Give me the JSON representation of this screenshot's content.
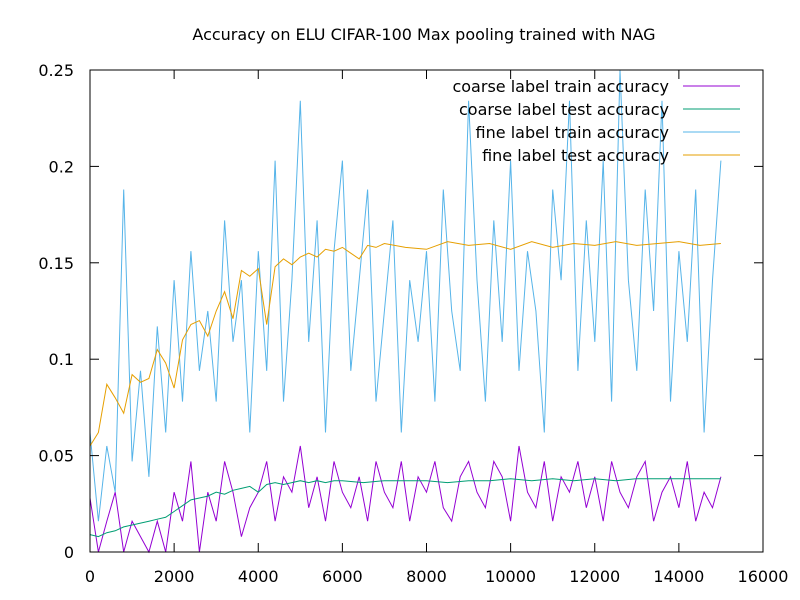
{
  "chart_data": {
    "type": "line",
    "title": "Accuracy on ELU CIFAR-100 Max pooling trained with NAG",
    "xlabel": "",
    "ylabel": "",
    "xlim": [
      0,
      16000
    ],
    "ylim": [
      0,
      0.25
    ],
    "grid": false,
    "legend_position": "top-right",
    "x_ticks": [
      0,
      2000,
      4000,
      6000,
      8000,
      10000,
      12000,
      14000,
      16000
    ],
    "x_tick_labels": [
      "0",
      "2000",
      "4000",
      "6000",
      "8000",
      "10000",
      "12000",
      "14000",
      "16000"
    ],
    "y_ticks": [
      0,
      0.05,
      0.1,
      0.15,
      0.2,
      0.25
    ],
    "y_tick_labels": [
      "0",
      "0.05",
      "0.1",
      "0.15",
      "0.2",
      "0.25"
    ],
    "series": [
      {
        "name": "coarse label train accuracy",
        "color": "#9400d3",
        "x": [
          0,
          200,
          400,
          600,
          800,
          1000,
          1200,
          1400,
          1600,
          1800,
          2000,
          2200,
          2400,
          2600,
          2800,
          3000,
          3200,
          3400,
          3600,
          3800,
          4000,
          4200,
          4400,
          4600,
          4800,
          5000,
          5200,
          5400,
          5600,
          5800,
          6000,
          6200,
          6400,
          6600,
          6800,
          7000,
          7200,
          7400,
          7600,
          7800,
          8000,
          8200,
          8400,
          8600,
          8800,
          9000,
          9200,
          9400,
          9600,
          9800,
          10000,
          10200,
          10400,
          10600,
          10800,
          11000,
          11200,
          11400,
          11600,
          11800,
          12000,
          12200,
          12400,
          12600,
          12800,
          13000,
          13200,
          13400,
          13600,
          13800,
          14000,
          14200,
          14400,
          14600,
          14800,
          15000
        ],
        "values": [
          0.028,
          0.0,
          0.016,
          0.031,
          0.0,
          0.016,
          0.008,
          0.0,
          0.016,
          0.0,
          0.031,
          0.016,
          0.047,
          0.0,
          0.031,
          0.016,
          0.047,
          0.031,
          0.008,
          0.023,
          0.031,
          0.047,
          0.016,
          0.039,
          0.031,
          0.055,
          0.023,
          0.039,
          0.016,
          0.047,
          0.031,
          0.023,
          0.039,
          0.016,
          0.047,
          0.031,
          0.023,
          0.047,
          0.016,
          0.039,
          0.031,
          0.047,
          0.023,
          0.016,
          0.039,
          0.047,
          0.031,
          0.023,
          0.047,
          0.039,
          0.016,
          0.055,
          0.031,
          0.023,
          0.047,
          0.016,
          0.039,
          0.031,
          0.047,
          0.023,
          0.039,
          0.016,
          0.047,
          0.031,
          0.023,
          0.039,
          0.047,
          0.016,
          0.031,
          0.039,
          0.023,
          0.047,
          0.016,
          0.031,
          0.023,
          0.039
        ]
      },
      {
        "name": "coarse label test accuracy",
        "color": "#009e73",
        "x": [
          0,
          200,
          400,
          600,
          800,
          1000,
          1200,
          1400,
          1600,
          1800,
          2000,
          2200,
          2400,
          2600,
          2800,
          3000,
          3200,
          3400,
          3600,
          3800,
          4000,
          4200,
          4400,
          4600,
          4800,
          5000,
          5200,
          5400,
          5600,
          5800,
          6000,
          6500,
          7000,
          7500,
          8000,
          8500,
          9000,
          9500,
          10000,
          10500,
          11000,
          11500,
          12000,
          12500,
          13000,
          13500,
          14000,
          14500,
          15000
        ],
        "values": [
          0.009,
          0.008,
          0.01,
          0.011,
          0.013,
          0.014,
          0.015,
          0.016,
          0.017,
          0.018,
          0.021,
          0.024,
          0.027,
          0.028,
          0.029,
          0.031,
          0.03,
          0.032,
          0.033,
          0.034,
          0.031,
          0.035,
          0.036,
          0.035,
          0.036,
          0.037,
          0.036,
          0.037,
          0.036,
          0.037,
          0.037,
          0.036,
          0.037,
          0.037,
          0.037,
          0.036,
          0.037,
          0.037,
          0.038,
          0.037,
          0.038,
          0.037,
          0.038,
          0.037,
          0.038,
          0.038,
          0.038,
          0.038,
          0.038
        ]
      },
      {
        "name": "fine label train accuracy",
        "color": "#56b4e9",
        "x": [
          0,
          200,
          400,
          600,
          800,
          1000,
          1200,
          1400,
          1600,
          1800,
          2000,
          2200,
          2400,
          2600,
          2800,
          3000,
          3200,
          3400,
          3600,
          3800,
          4000,
          4200,
          4400,
          4600,
          4800,
          5000,
          5200,
          5400,
          5600,
          5800,
          6000,
          6200,
          6400,
          6600,
          6800,
          7000,
          7200,
          7400,
          7600,
          7800,
          8000,
          8200,
          8400,
          8600,
          8800,
          9000,
          9200,
          9400,
          9600,
          9800,
          10000,
          10200,
          10400,
          10600,
          10800,
          11000,
          11200,
          11400,
          11600,
          11800,
          12000,
          12200,
          12400,
          12600,
          12800,
          13000,
          13200,
          13400,
          13600,
          13800,
          14000,
          14200,
          14400,
          14600,
          14800,
          15000
        ],
        "values": [
          0.062,
          0.016,
          0.055,
          0.031,
          0.188,
          0.047,
          0.094,
          0.039,
          0.117,
          0.062,
          0.141,
          0.078,
          0.156,
          0.094,
          0.125,
          0.078,
          0.172,
          0.109,
          0.141,
          0.062,
          0.156,
          0.094,
          0.203,
          0.078,
          0.141,
          0.234,
          0.109,
          0.172,
          0.062,
          0.156,
          0.203,
          0.094,
          0.141,
          0.188,
          0.078,
          0.125,
          0.172,
          0.062,
          0.141,
          0.109,
          0.156,
          0.078,
          0.188,
          0.125,
          0.094,
          0.234,
          0.141,
          0.078,
          0.172,
          0.109,
          0.203,
          0.094,
          0.156,
          0.125,
          0.062,
          0.188,
          0.141,
          0.234,
          0.094,
          0.172,
          0.109,
          0.203,
          0.078,
          0.25,
          0.141,
          0.094,
          0.188,
          0.125,
          0.234,
          0.078,
          0.156,
          0.109,
          0.188,
          0.062,
          0.141,
          0.203
        ]
      },
      {
        "name": "fine label test accuracy",
        "color": "#e69f00",
        "x": [
          0,
          200,
          400,
          600,
          800,
          1000,
          1200,
          1400,
          1600,
          1800,
          2000,
          2200,
          2400,
          2600,
          2800,
          3000,
          3200,
          3400,
          3600,
          3800,
          4000,
          4200,
          4400,
          4600,
          4800,
          5000,
          5200,
          5400,
          5600,
          5800,
          6000,
          6200,
          6400,
          6600,
          6800,
          7000,
          7500,
          8000,
          8500,
          9000,
          9500,
          10000,
          10500,
          11000,
          11500,
          12000,
          12500,
          13000,
          13500,
          14000,
          14500,
          15000
        ],
        "values": [
          0.055,
          0.062,
          0.087,
          0.08,
          0.072,
          0.092,
          0.088,
          0.09,
          0.105,
          0.098,
          0.085,
          0.11,
          0.118,
          0.12,
          0.112,
          0.125,
          0.135,
          0.121,
          0.146,
          0.143,
          0.147,
          0.118,
          0.148,
          0.152,
          0.149,
          0.153,
          0.155,
          0.153,
          0.157,
          0.156,
          0.158,
          0.155,
          0.152,
          0.159,
          0.158,
          0.16,
          0.158,
          0.157,
          0.161,
          0.159,
          0.16,
          0.157,
          0.161,
          0.158,
          0.16,
          0.159,
          0.161,
          0.159,
          0.16,
          0.161,
          0.159,
          0.16
        ]
      }
    ]
  }
}
